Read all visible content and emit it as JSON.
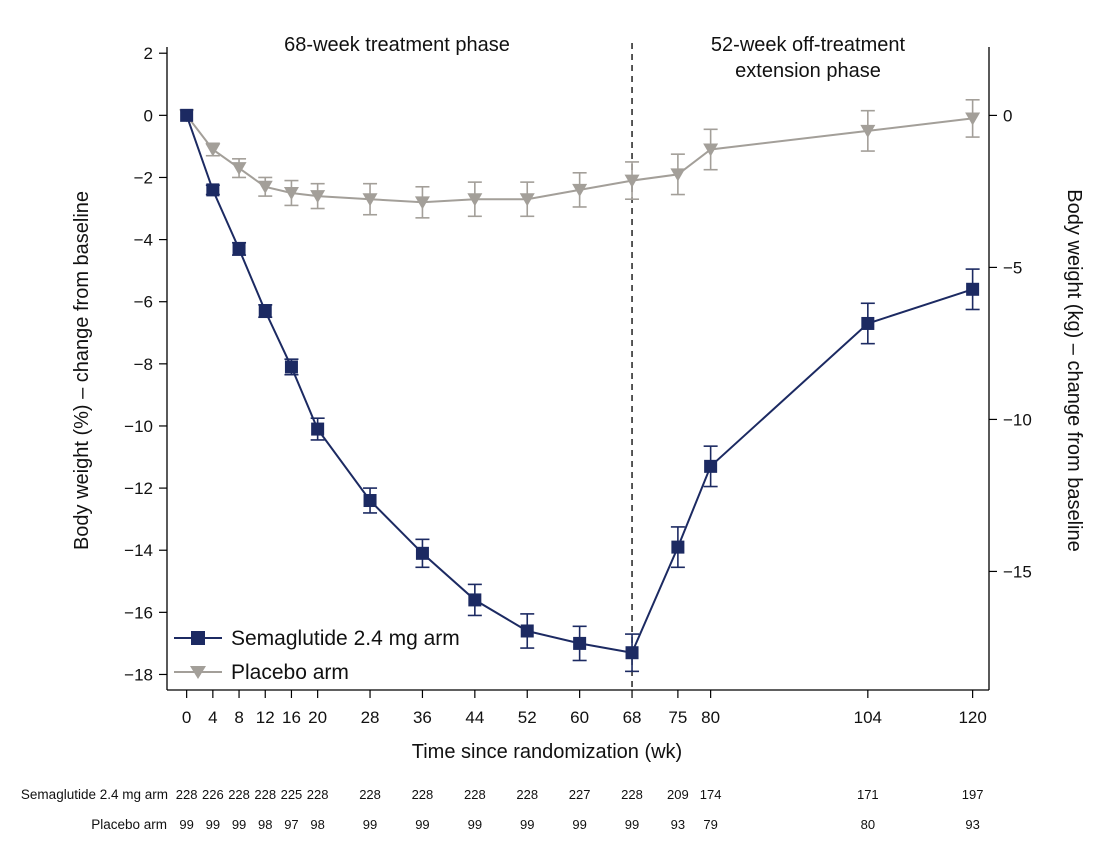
{
  "chart_data": {
    "type": "line",
    "phases": [
      {
        "lines": [
          "68-week treatment phase"
        ]
      },
      {
        "lines": [
          "52-week off-treatment",
          "extension phase"
        ]
      }
    ],
    "divider_at": 68,
    "xlabel": "Time since randomization (wk)",
    "ylabel_left": "Body weight (%) – change from baseline",
    "ylabel_right": "Body weight (kg) – change from baseline",
    "xlim": [
      -3,
      122.5
    ],
    "ylim_left": [
      -18.5,
      2.2
    ],
    "ylim_right": [
      -18.9,
      2.25
    ],
    "x_ticks": [
      0,
      4,
      8,
      12,
      16,
      20,
      28,
      36,
      44,
      52,
      60,
      68,
      75,
      80,
      104,
      120
    ],
    "y_ticks_left": [
      2,
      0,
      -2,
      -4,
      -6,
      -8,
      -10,
      -12,
      -14,
      -16,
      -18
    ],
    "y_ticks_right": [
      0,
      -5,
      -10,
      -15
    ],
    "tick_labels_left": [
      "2",
      "0",
      "−2",
      "−4",
      "−6",
      "−8",
      "−10",
      "−12",
      "−14",
      "−16",
      "−18"
    ],
    "tick_labels_right": [
      "0",
      "−5",
      "−10",
      "−15"
    ],
    "legend_position": "bottom-left",
    "series": [
      {
        "name": "Semaglutide 2.4 mg arm",
        "color": "#1c2a62",
        "marker": "square",
        "x": [
          0,
          4,
          8,
          12,
          16,
          20,
          28,
          36,
          44,
          52,
          60,
          68,
          75,
          80,
          104,
          120
        ],
        "y": [
          0,
          -2.4,
          -4.3,
          -6.3,
          -8.1,
          -10.1,
          -12.4,
          -14.1,
          -15.6,
          -16.6,
          -17.0,
          -17.3,
          -13.9,
          -11.3,
          -6.7,
          -5.6
        ],
        "err": [
          0,
          0.15,
          0.2,
          0.2,
          0.25,
          0.35,
          0.4,
          0.45,
          0.5,
          0.55,
          0.55,
          0.6,
          0.65,
          0.65,
          0.65,
          0.65
        ],
        "n_at_risk": [
          "228",
          "226",
          "228",
          "228",
          "225",
          "228",
          "228",
          "228",
          "228",
          "228",
          "227",
          "228",
          "209",
          "174",
          "171",
          "197"
        ]
      },
      {
        "name": "Placebo arm",
        "color": "#a39f99",
        "marker": "triangle-down",
        "x": [
          0,
          4,
          8,
          12,
          16,
          20,
          28,
          36,
          44,
          52,
          60,
          68,
          75,
          80,
          104,
          120
        ],
        "y": [
          0,
          -1.1,
          -1.7,
          -2.3,
          -2.5,
          -2.6,
          -2.7,
          -2.8,
          -2.7,
          -2.7,
          -2.4,
          -2.1,
          -1.9,
          -1.1,
          -0.5,
          -0.1
        ],
        "err": [
          0,
          0.2,
          0.3,
          0.3,
          0.4,
          0.4,
          0.5,
          0.5,
          0.55,
          0.55,
          0.55,
          0.6,
          0.65,
          0.65,
          0.65,
          0.6
        ],
        "n_at_risk": [
          "99",
          "99",
          "99",
          "98",
          "97",
          "98",
          "99",
          "99",
          "99",
          "99",
          "99",
          "99",
          "93",
          "79",
          "80",
          "93"
        ]
      }
    ]
  }
}
